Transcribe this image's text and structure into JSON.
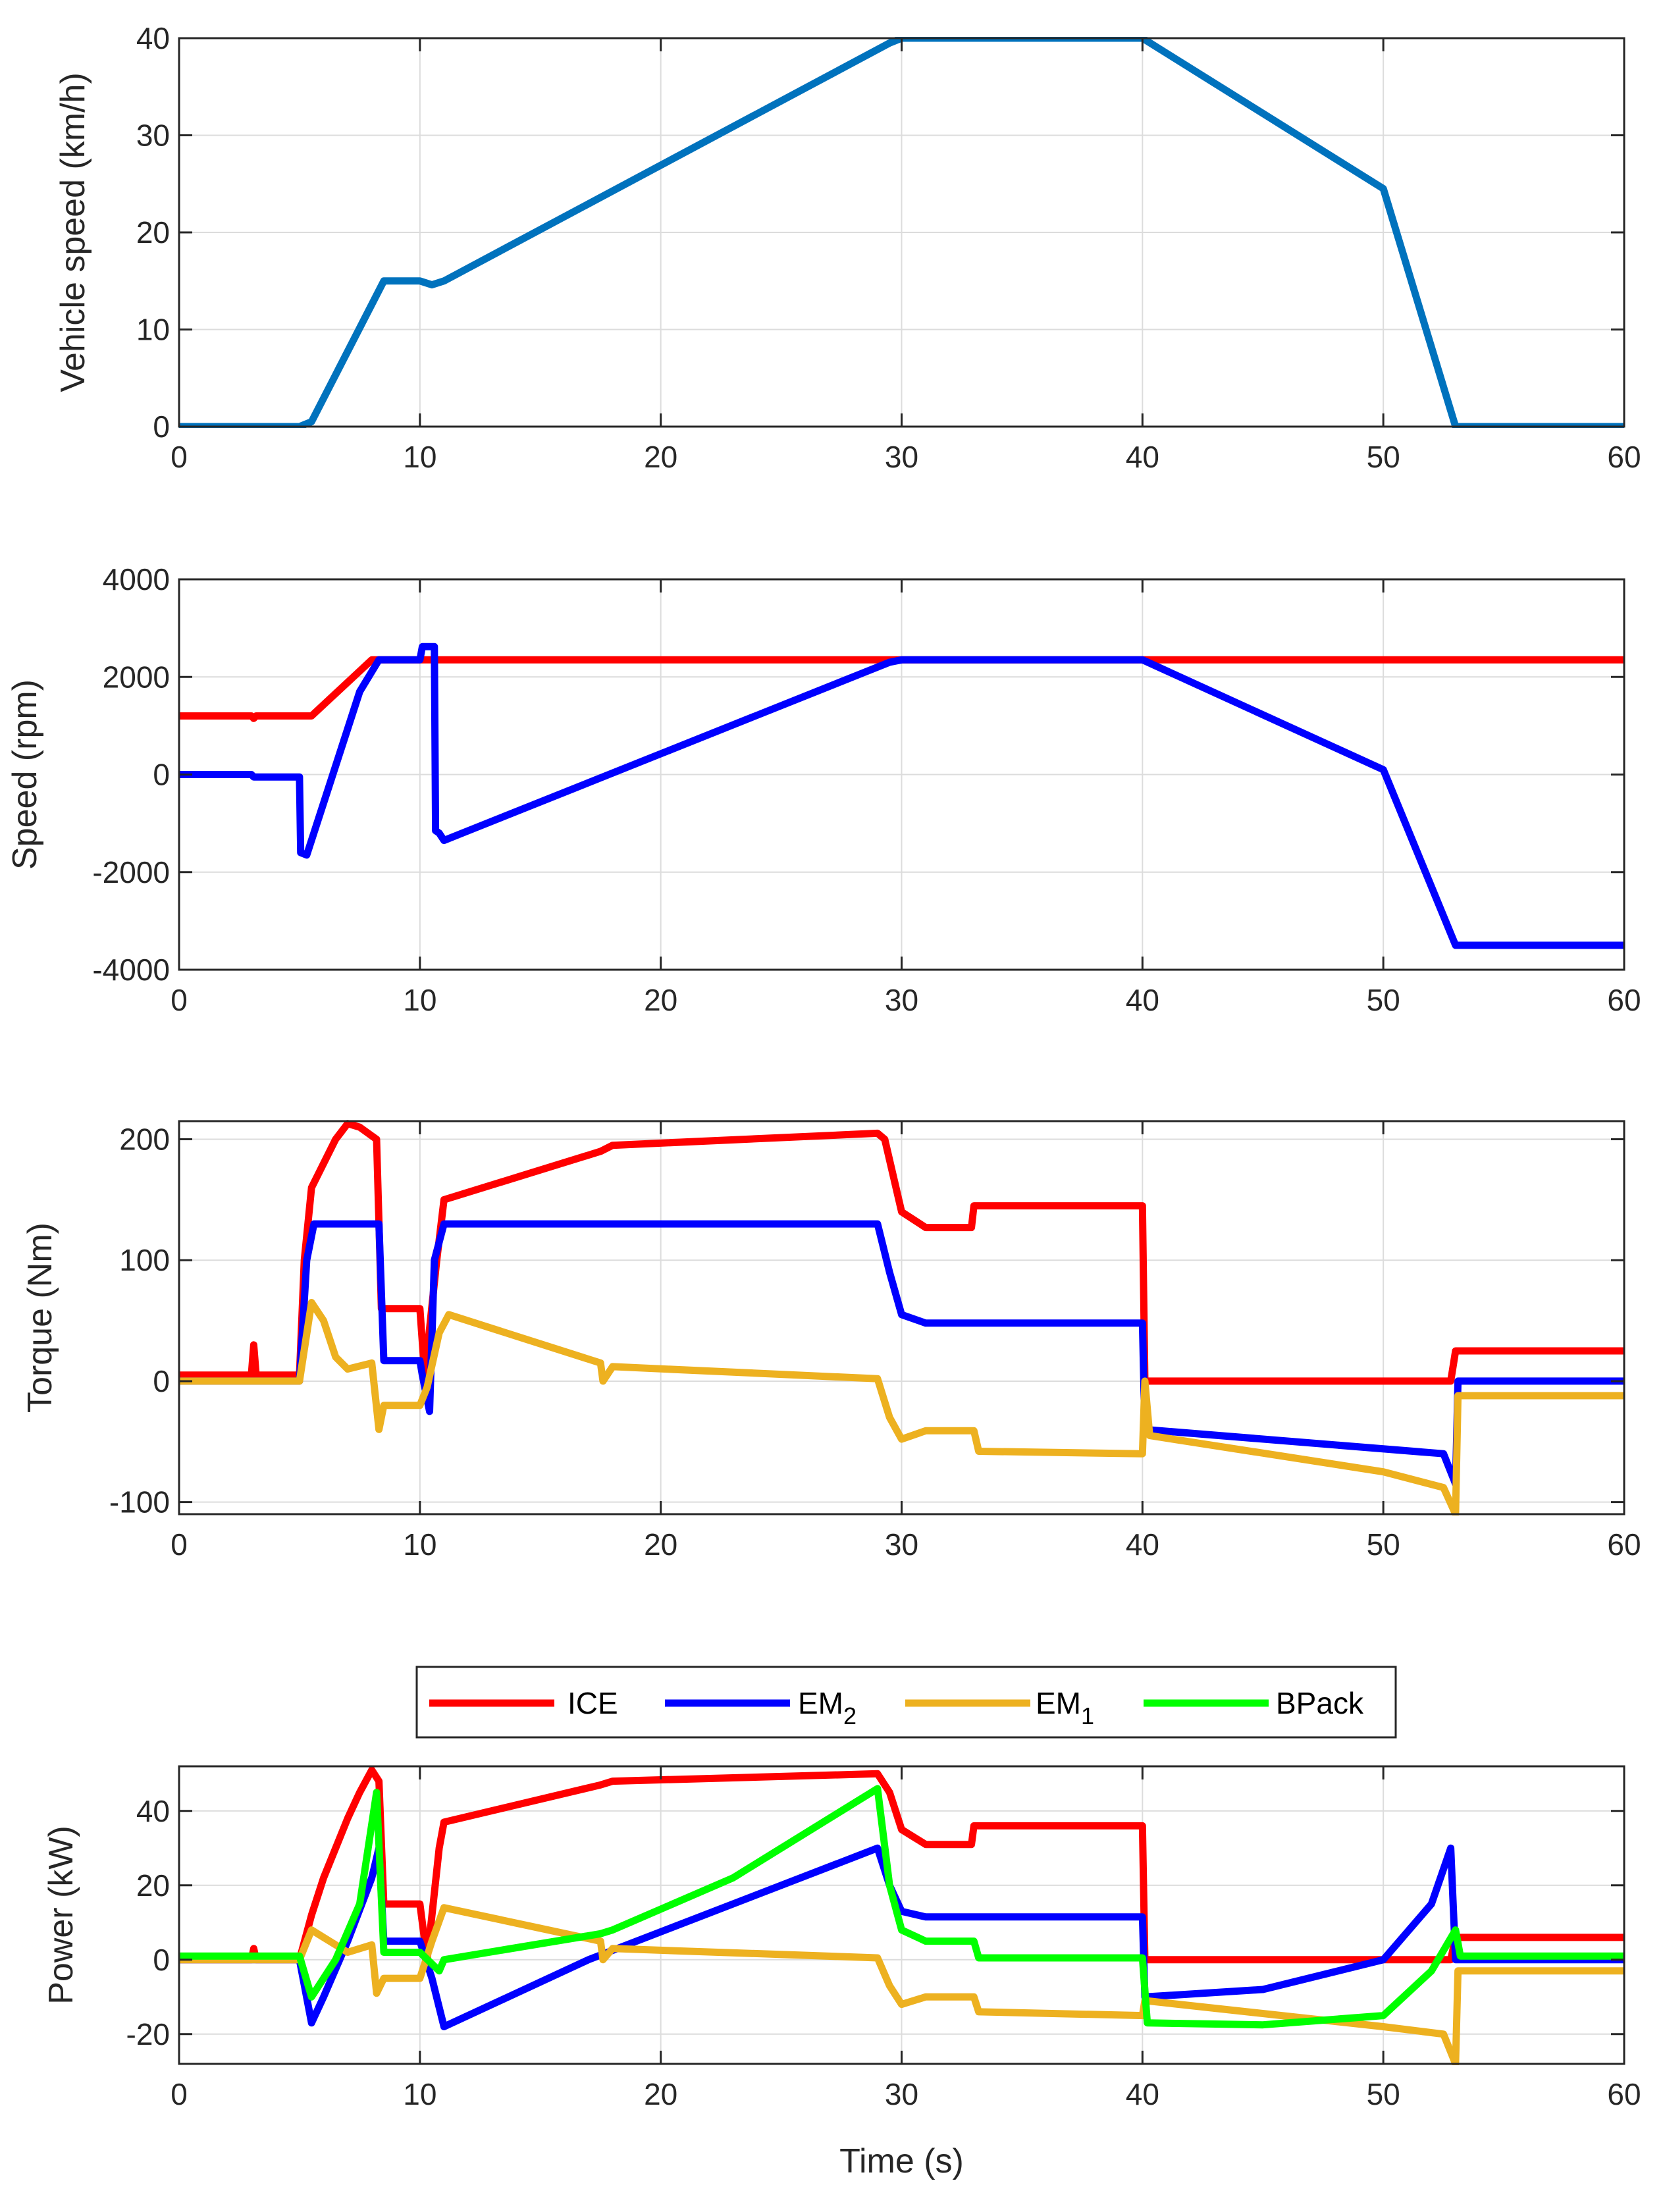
{
  "chart_data": [
    {
      "type": "line",
      "ylabel": "Vehicle speed (km/h)",
      "xlabel": "",
      "xlim": [
        0,
        60
      ],
      "ylim": [
        0,
        40
      ],
      "xticks": [
        "0",
        "10",
        "20",
        "30",
        "40",
        "50",
        "60"
      ],
      "yticks": [
        "0",
        "10",
        "20",
        "30",
        "40"
      ],
      "grid": true,
      "series": [
        {
          "name": "Vehicle speed",
          "color": "#0072BD",
          "x": [
            0,
            5,
            5.5,
            8.5,
            10,
            10.5,
            11,
            29.5,
            30,
            40,
            50,
            53,
            60
          ],
          "y": [
            0,
            0,
            0.5,
            15,
            15,
            14.6,
            15,
            39.5,
            40,
            40,
            24.5,
            0,
            0
          ]
        }
      ]
    },
    {
      "type": "line",
      "ylabel": "Speed (rpm)",
      "xlabel": "",
      "xlim": [
        0,
        60
      ],
      "ylim": [
        -4000,
        4000
      ],
      "xticks": [
        "0",
        "10",
        "20",
        "30",
        "40",
        "50",
        "60"
      ],
      "yticks": [
        "-4000",
        "-2000",
        "0",
        "2000",
        "4000"
      ],
      "grid": true,
      "series": [
        {
          "name": "ICE",
          "color": "#FF0000",
          "x": [
            0,
            3,
            3.1,
            3.2,
            5.5,
            8,
            60
          ],
          "y": [
            1200,
            1200,
            1150,
            1200,
            1200,
            2350,
            2350
          ]
        },
        {
          "name": "EM2",
          "color": "#0000FF",
          "x": [
            0,
            3,
            3.1,
            5,
            5.05,
            5.3,
            7.5,
            8.3,
            10,
            10.1,
            10.6,
            10.65,
            10.8,
            11,
            29.5,
            30,
            40,
            50,
            53,
            60
          ],
          "y": [
            0,
            0,
            -50,
            -50,
            -1600,
            -1650,
            1700,
            2350,
            2350,
            2620,
            2620,
            -1150,
            -1200,
            -1350,
            2300,
            2350,
            2350,
            100,
            -3500,
            -3500
          ]
        }
      ]
    },
    {
      "type": "line",
      "ylabel": "Torque (Nm)",
      "xlabel": "",
      "xlim": [
        0,
        60
      ],
      "ylim": [
        -110,
        215
      ],
      "xticks": [
        "0",
        "10",
        "20",
        "30",
        "40",
        "50",
        "60"
      ],
      "yticks": [
        "-100",
        "0",
        "100",
        "200"
      ],
      "grid": true,
      "series": [
        {
          "name": "ICE",
          "color": "#FF0000",
          "x": [
            0,
            3,
            3.1,
            3.2,
            5,
            5.2,
            5.5,
            6.5,
            7,
            7.5,
            8.2,
            8.4,
            10,
            10.2,
            10.7,
            11,
            17.5,
            18,
            29,
            29.3,
            30,
            31,
            32.9,
            33,
            40,
            40.1,
            52.8,
            53,
            60
          ],
          "y": [
            5,
            5,
            30,
            5,
            5,
            100,
            160,
            200,
            213,
            210,
            200,
            60,
            60,
            5,
            100,
            150,
            190,
            195,
            205,
            200,
            140,
            127,
            127,
            145,
            145,
            0,
            0,
            25,
            25
          ]
        },
        {
          "name": "EM2",
          "color": "#0000FF",
          "x": [
            0,
            5,
            5.3,
            5.6,
            8.3,
            8.5,
            10,
            10.1,
            10.4,
            10.6,
            11,
            29,
            29.5,
            30,
            31,
            40,
            40.1,
            52.5,
            53,
            53.1,
            60
          ],
          "y": [
            0,
            0,
            100,
            130,
            130,
            17,
            17,
            5,
            -25,
            100,
            130,
            130,
            90,
            55,
            48,
            48,
            -40,
            -60,
            -85,
            0,
            0
          ]
        },
        {
          "name": "EM1",
          "color": "#EDB120",
          "x": [
            0,
            5,
            5.5,
            6,
            6.5,
            7,
            8,
            8.3,
            8.5,
            10,
            10.3,
            10.8,
            11.2,
            17.5,
            17.6,
            18,
            29,
            29.5,
            30,
            31,
            33,
            33.2,
            40,
            40.1,
            40.3,
            50,
            52.5,
            53,
            53.1,
            60
          ],
          "y": [
            0,
            0,
            65,
            50,
            20,
            10,
            15,
            -40,
            -20,
            -20,
            -5,
            40,
            55,
            15,
            0,
            12,
            2,
            -30,
            -48,
            -41,
            -41,
            -58,
            -60,
            0,
            -45,
            -75,
            -88,
            -110,
            -12,
            -12
          ]
        }
      ]
    },
    {
      "type": "line",
      "ylabel": "Power (kW)",
      "xlabel": "Time (s)",
      "xlim": [
        0,
        60
      ],
      "ylim": [
        -28,
        52
      ],
      "xticks": [
        "0",
        "10",
        "20",
        "30",
        "40",
        "50",
        "60"
      ],
      "yticks": [
        "-20",
        "0",
        "20",
        "40"
      ],
      "grid": true,
      "legend": {
        "placement": "top-center",
        "entries": [
          "ICE",
          "EM",
          "EM",
          "BPack"
        ],
        "subscripts": [
          "",
          "2",
          "1",
          ""
        ]
      },
      "series": [
        {
          "name": "ICE",
          "color": "#FF0000",
          "x": [
            0,
            3,
            3.1,
            3.2,
            5,
            5.5,
            6,
            7,
            7.5,
            8,
            8.3,
            8.5,
            10,
            10.3,
            10.8,
            11,
            17.5,
            18,
            29,
            29.5,
            30,
            31,
            32.9,
            33,
            40,
            40.1,
            52.8,
            53,
            60
          ],
          "y": [
            0,
            0,
            3,
            0,
            0,
            12,
            22,
            38,
            45,
            51,
            48,
            15,
            15,
            0,
            30,
            37,
            47,
            48,
            50,
            45,
            35,
            31,
            31,
            36,
            36,
            0,
            0,
            6,
            6
          ]
        },
        {
          "name": "EM2",
          "color": "#0000FF",
          "x": [
            0,
            5,
            5.5,
            6,
            7,
            8,
            8.3,
            8.5,
            10,
            10.5,
            11,
            17,
            29,
            29.5,
            30,
            31,
            40,
            40.1,
            45,
            50,
            52,
            52.8,
            53,
            60
          ],
          "y": [
            0,
            0,
            -17,
            -10,
            5,
            22,
            30,
            5,
            5,
            -5,
            -18,
            0,
            30,
            20,
            13,
            11.5,
            11.5,
            -10,
            -8,
            0,
            15,
            30,
            0,
            0
          ]
        },
        {
          "name": "EM1",
          "color": "#EDB120",
          "x": [
            0,
            5,
            5.5,
            6,
            7,
            8,
            8.2,
            8.5,
            10,
            10.5,
            11,
            17.5,
            17.6,
            18,
            29,
            29.5,
            30,
            31,
            33,
            33.2,
            40,
            40.1,
            50,
            52.5,
            53,
            53.1,
            60
          ],
          "y": [
            0,
            0,
            8,
            6,
            2,
            4,
            -9,
            -5,
            -5,
            5,
            14,
            5,
            0,
            3,
            0.5,
            -7,
            -12,
            -10,
            -10,
            -14,
            -15,
            -11,
            -18,
            -20,
            -28,
            -3,
            -3
          ]
        },
        {
          "name": "BPack",
          "color": "#00FF00",
          "x": [
            0,
            5,
            5.5,
            6.5,
            7.5,
            8.2,
            8.5,
            10,
            10.8,
            11,
            17.5,
            18,
            23,
            29,
            29.5,
            30,
            31,
            33,
            33.2,
            40,
            40.2,
            45,
            50,
            52,
            53,
            53.2,
            60
          ],
          "y": [
            1,
            1,
            -10,
            0,
            15,
            45,
            2,
            2,
            -3,
            0,
            7,
            8,
            22,
            46,
            20,
            8,
            5,
            5,
            0.5,
            0.5,
            -17,
            -17.5,
            -15,
            -3,
            8,
            1,
            1
          ]
        }
      ]
    }
  ]
}
